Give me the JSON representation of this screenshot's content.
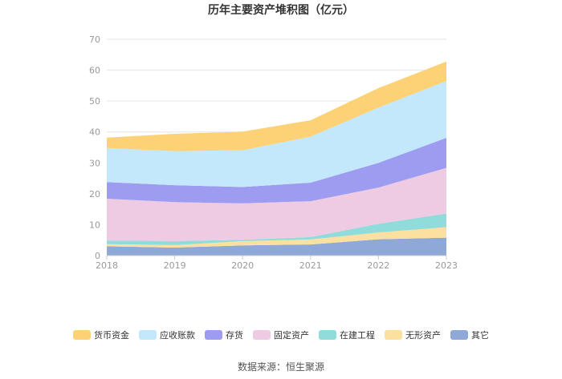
{
  "chart_data": {
    "type": "area",
    "stacked": true,
    "title": "历年主要资产堆积图（亿元）",
    "xlabel": "",
    "ylabel": "",
    "ylim": [
      0,
      70
    ],
    "yticks": [
      0,
      10,
      20,
      30,
      40,
      50,
      60,
      70
    ],
    "categories": [
      "2018",
      "2019",
      "2020",
      "2021",
      "2022",
      "2023"
    ],
    "grid": true,
    "legend_position": "bottom",
    "series": [
      {
        "name": "其它",
        "color": "#8ea9d8",
        "values": [
          3.0,
          2.6,
          3.3,
          3.6,
          5.3,
          5.8
        ]
      },
      {
        "name": "无形资产",
        "color": "#fbe0a0",
        "values": [
          0.7,
          0.8,
          1.4,
          1.6,
          2.2,
          3.4
        ]
      },
      {
        "name": "在建工程",
        "color": "#8fdcdb",
        "values": [
          1.2,
          1.3,
          0.4,
          0.8,
          2.8,
          4.4
        ]
      },
      {
        "name": "固定资产",
        "color": "#efcbe3",
        "values": [
          13.5,
          12.6,
          11.8,
          11.6,
          11.7,
          14.8
        ]
      },
      {
        "name": "存货",
        "color": "#9e9cf0",
        "values": [
          5.4,
          5.5,
          5.3,
          6.0,
          8.0,
          9.7
        ]
      },
      {
        "name": "应收账款",
        "color": "#c3e8fb",
        "values": [
          11.0,
          11.0,
          11.9,
          14.9,
          17.9,
          18.4
        ]
      },
      {
        "name": "货币资金",
        "color": "#fdd276",
        "values": [
          3.4,
          5.6,
          6.0,
          5.3,
          6.3,
          6.3
        ]
      }
    ],
    "legend_order": [
      "货币资金",
      "应收账款",
      "存货",
      "固定资产",
      "在建工程",
      "无形资产",
      "其它"
    ],
    "source": "数据来源：恒生聚源"
  }
}
